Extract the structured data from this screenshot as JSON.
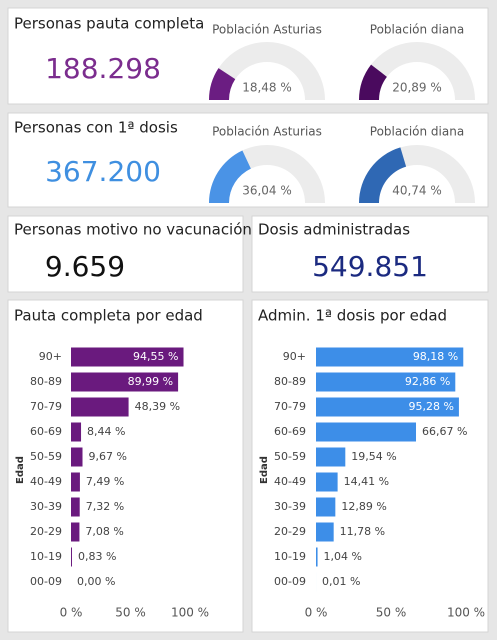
{
  "cards": [
    {
      "title": "Personas pauta completa",
      "value": "188.298",
      "color": "#7b2d8e"
    },
    {
      "title": "Personas con 1ª dosis",
      "value": "367.200",
      "color": "#3f8fe0"
    },
    {
      "title": "Personas motivo no vacunación",
      "value": "9.659",
      "color": "#111111"
    },
    {
      "title": "Dosis administradas",
      "value": "549.851",
      "color": "#1b2a80"
    }
  ],
  "chart_data": [
    {
      "type": "gauge",
      "title": "Población Asturias",
      "value": 18.48,
      "value_labels": "18,48 %",
      "ylim": [
        0,
        100
      ],
      "color": "#6b1d82"
    },
    {
      "type": "gauge",
      "title": "Población diana",
      "value": 20.89,
      "value_labels": "20,89 %",
      "ylim": [
        0,
        100
      ],
      "color": "#4a0a5e"
    },
    {
      "type": "gauge",
      "title": "Población Asturias",
      "value": 36.04,
      "value_labels": "36,04 %",
      "ylim": [
        0,
        100
      ],
      "color": "#4a93e6"
    },
    {
      "type": "gauge",
      "title": "Población diana",
      "value": 40.74,
      "value_labels": "40,74 %",
      "ylim": [
        0,
        100
      ],
      "color": "#2f68b4"
    },
    {
      "type": "bar",
      "orientation": "horizontal",
      "title": "Pauta completa por edad",
      "y_label": "Edad",
      "categories": [
        "90+",
        "80-89",
        "70-79",
        "60-69",
        "50-59",
        "40-49",
        "30-39",
        "20-29",
        "10-19",
        "00-09"
      ],
      "values": [
        94.55,
        89.99,
        48.39,
        8.44,
        9.67,
        7.49,
        7.32,
        7.08,
        0.83,
        0.0
      ],
      "value_labels": [
        "94,55 %",
        "89,99 %",
        "48,39 %",
        "8,44 %",
        "9,67 %",
        "7,49 %",
        "7,32 %",
        "7,08 %",
        "0,83 %",
        "0,00 %"
      ],
      "xlim": [
        0,
        100
      ],
      "xticks": [
        {
          "value": 0,
          "label": "0 %"
        },
        {
          "value": 50,
          "label": "50 %"
        },
        {
          "value": 100,
          "label": "100 %"
        }
      ],
      "color": "#6a1a7e"
    },
    {
      "type": "bar",
      "orientation": "horizontal",
      "title": "Admin. 1ª dosis por edad",
      "y_label": "Edad",
      "categories": [
        "90+",
        "80-89",
        "70-79",
        "60-69",
        "50-59",
        "40-49",
        "30-39",
        "20-29",
        "10-19",
        "00-09"
      ],
      "values": [
        98.18,
        92.86,
        95.28,
        66.67,
        19.54,
        14.41,
        12.89,
        11.78,
        1.04,
        0.01
      ],
      "value_labels": [
        "98,18 %",
        "92,86 %",
        "95,28 %",
        "66,67 %",
        "19,54 %",
        "14,41 %",
        "12,89 %",
        "11,78 %",
        "1,04 %",
        "0,01 %"
      ],
      "xlim": [
        0,
        100
      ],
      "xticks": [
        {
          "value": 0,
          "label": "0 %"
        },
        {
          "value": 50,
          "label": "50 %"
        },
        {
          "value": 100,
          "label": "100 %"
        }
      ],
      "color": "#3d8ee8"
    }
  ]
}
